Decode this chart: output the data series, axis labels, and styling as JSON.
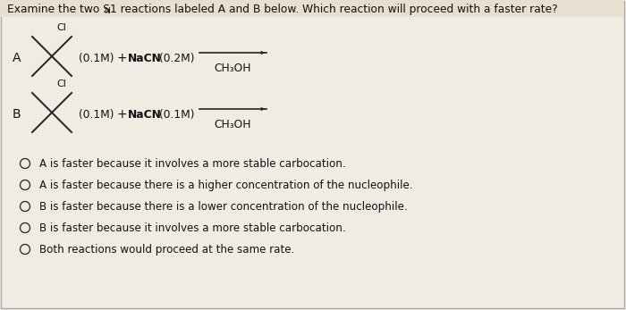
{
  "bg_color": "#f0ece4",
  "content_bg": "#f0ece4",
  "title_bg": "#e8dfd0",
  "border_color": "#aaaaaa",
  "text_color": "#111111",
  "line_color": "#222222",
  "title_text": "Examine the two S",
  "title_sub": "N",
  "title_rest": "1 reactions labeled A and B below. Which reaction will proceed with a faster rate?",
  "font_size_title": 8.8,
  "font_size_label": 10.0,
  "font_size_body": 8.8,
  "font_size_choice": 8.6,
  "font_size_cl": 8.0,
  "reaction_A_conc": "(0.1M)",
  "reaction_A_reagent": "NaCN",
  "reaction_A_reagent_conc": "(0.2M)",
  "reaction_A_solvent": "CH₃OH",
  "reaction_B_conc": "(0.1M)",
  "reaction_B_reagent": "NaCN",
  "reaction_B_reagent_conc": "(0.1M)",
  "reaction_B_solvent": "CH₃OH",
  "choices": [
    "A is faster because it involves a more stable carbocation.",
    "A is faster because there is a higher concentration of the nucleophile.",
    "B is faster because there is a lower concentration of the nucleophile.",
    "B is faster because it involves a more stable carbocation.",
    "Both reactions would proceed at the same rate."
  ]
}
